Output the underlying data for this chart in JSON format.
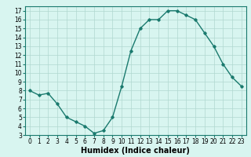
{
  "x": [
    0,
    1,
    2,
    3,
    4,
    5,
    6,
    7,
    8,
    9,
    10,
    11,
    12,
    13,
    14,
    15,
    16,
    17,
    18,
    19,
    20,
    21,
    22,
    23
  ],
  "y": [
    8.0,
    7.5,
    7.7,
    6.5,
    5.0,
    4.5,
    4.0,
    3.2,
    3.5,
    5.0,
    8.5,
    12.5,
    15.0,
    16.0,
    16.0,
    17.0,
    17.0,
    16.5,
    16.0,
    14.5,
    13.0,
    11.0,
    9.5,
    8.5
  ],
  "xlabel": "Humidex (Indice chaleur)",
  "xlim": [
    -0.5,
    23.5
  ],
  "ylim": [
    3,
    17.5
  ],
  "yticks": [
    3,
    4,
    5,
    6,
    7,
    8,
    9,
    10,
    11,
    12,
    13,
    14,
    15,
    16,
    17
  ],
  "xticks": [
    0,
    1,
    2,
    3,
    4,
    5,
    6,
    7,
    8,
    9,
    10,
    11,
    12,
    13,
    14,
    15,
    16,
    17,
    18,
    19,
    20,
    21,
    22,
    23
  ],
  "line_color": "#1a7a6e",
  "bg_color": "#d8f5f0",
  "grid_color": "#b0d8cf",
  "marker": "D",
  "markersize": 1.8,
  "linewidth": 1.0,
  "xlabel_fontsize": 7,
  "tick_fontsize": 5.5
}
